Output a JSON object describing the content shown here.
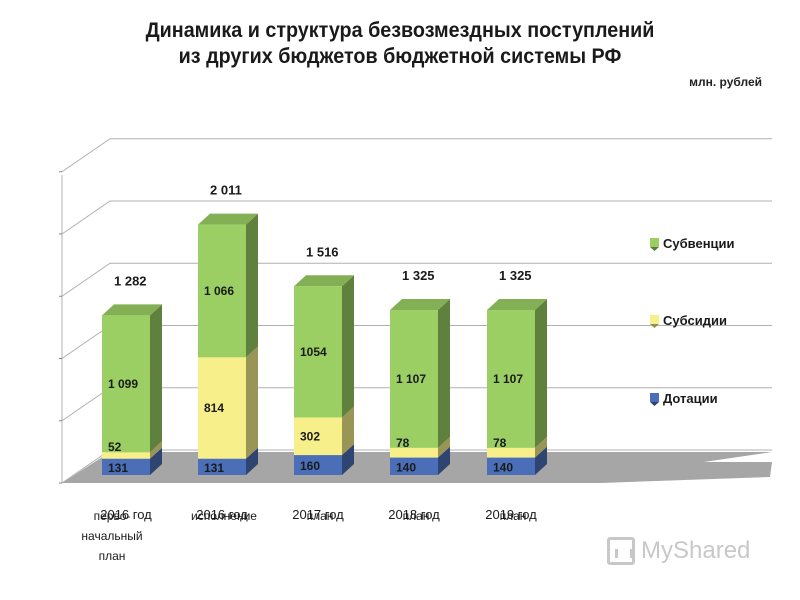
{
  "header": {
    "title_line1": "Динамика и структура безвозмездных поступлений",
    "title_line2": "из других бюджетов бюджетной системы РФ",
    "units": "млн. рублей"
  },
  "watermark": {
    "text": "MyShared"
  },
  "colors": {
    "dotacii": "#4a6fb8",
    "subsidii": "#f7f08a",
    "subvencii": "#9bcf64",
    "floor": "#a6a6a6",
    "grid": "#b0b0b0"
  },
  "chart_data": {
    "type": "bar",
    "stacked": true,
    "categories": [
      "2016 год",
      "2016 год",
      "2017 год",
      "2018 год",
      "2019 год"
    ],
    "category_sublabels": [
      "перво- начальный план",
      "исполнение",
      "план",
      "план",
      "план"
    ],
    "series": [
      {
        "name": "Дотации",
        "values": [
          131,
          131,
          160,
          140,
          140
        ],
        "labels": [
          "131",
          "131",
          "160",
          "140",
          "140"
        ]
      },
      {
        "name": "Субсидии",
        "values": [
          52,
          814,
          302,
          78,
          78
        ],
        "labels": [
          "52",
          "814",
          "302",
          "78",
          "78"
        ]
      },
      {
        "name": "Субвенции",
        "values": [
          1099,
          1066,
          1054,
          1107,
          1107
        ],
        "labels": [
          "1 099",
          "1 066",
          "1054",
          "1 107",
          "1 107"
        ]
      }
    ],
    "totals": [
      "1 282",
      "2 011",
      "1 516",
      "1 325",
      "1 325"
    ],
    "legend_order": [
      "Субвенции",
      "Субсидии",
      "Дотации"
    ],
    "legend_position": "right",
    "ylim": [
      0,
      2500
    ],
    "grid": true
  }
}
